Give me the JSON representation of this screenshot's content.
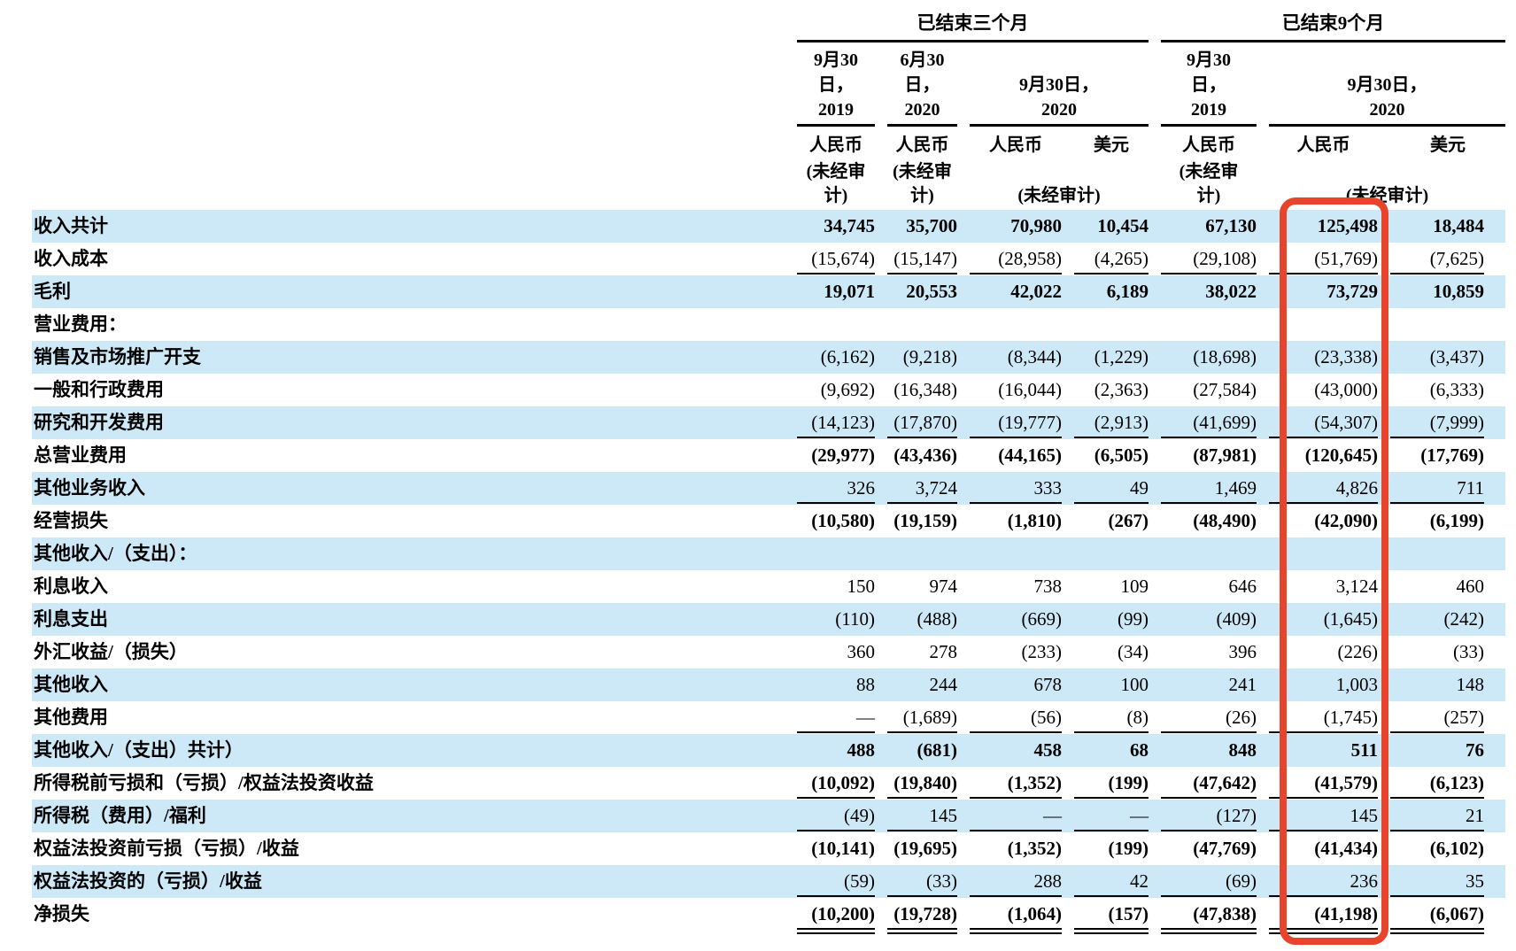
{
  "colors": {
    "row_shade": "#cde9f8",
    "highlight_red": "#e8432b"
  },
  "table": {
    "groups": [
      {
        "label": "已结束三个月"
      },
      {
        "label": "已结束9个月"
      }
    ],
    "dates": [
      [
        "9月30",
        "日，",
        "2019"
      ],
      [
        "6月30",
        "日，",
        "2020"
      ],
      [
        "9月30日，",
        "2020"
      ],
      [
        "9月30",
        "日，",
        "2019"
      ],
      [
        "9月30日，",
        "2020"
      ]
    ],
    "currencies": [
      "人民币",
      "人民币",
      "人民币",
      "美元",
      "人民币",
      "人民币",
      "美元"
    ],
    "audit_note": {
      "wrapped": [
        "(未经审",
        "计)"
      ],
      "single": "(未经审计)"
    },
    "highlight": {
      "description": "red box around 已结束9个月 9月30日，2020 人民币 column",
      "column_index": 5
    },
    "rows": [
      {
        "label": "收入共计",
        "values": [
          "34,745",
          "35,700",
          "70,980",
          "10,454",
          "67,130",
          "125,498",
          "18,484"
        ],
        "bold": true,
        "shaded": true
      },
      {
        "label": "收入成本",
        "values": [
          "(15,674)",
          "(15,147)",
          "(28,958)",
          "(4,265)",
          "(29,108)",
          "(51,769)",
          "(7,625)"
        ],
        "underline": true
      },
      {
        "label": "毛利",
        "values": [
          "19,071",
          "20,553",
          "42,022",
          "6,189",
          "38,022",
          "73,729",
          "10,859"
        ],
        "bold": true,
        "shaded": true
      },
      {
        "label": "营业费用：",
        "values": [
          "",
          "",
          "",
          "",
          "",
          "",
          ""
        ]
      },
      {
        "label": "销售及市场推广开支",
        "values": [
          "(6,162)",
          "(9,218)",
          "(8,344)",
          "(1,229)",
          "(18,698)",
          "(23,338)",
          "(3,437)"
        ],
        "shaded": true
      },
      {
        "label": "一般和行政费用",
        "values": [
          "(9,692)",
          "(16,348)",
          "(16,044)",
          "(2,363)",
          "(27,584)",
          "(43,000)",
          "(6,333)"
        ]
      },
      {
        "label": "研究和开发费用",
        "values": [
          "(14,123)",
          "(17,870)",
          "(19,777)",
          "(2,913)",
          "(41,699)",
          "(54,307)",
          "(7,999)"
        ],
        "shaded": true,
        "underline": true
      },
      {
        "label": "总营业费用",
        "values": [
          "(29,977)",
          "(43,436)",
          "(44,165)",
          "(6,505)",
          "(87,981)",
          "(120,645)",
          "(17,769)"
        ],
        "bold": true
      },
      {
        "label": "其他业务收入",
        "values": [
          "326",
          "3,724",
          "333",
          "49",
          "1,469",
          "4,826",
          "711"
        ],
        "shaded": true,
        "underline": true
      },
      {
        "label": "经营损失",
        "values": [
          "(10,580)",
          "(19,159)",
          "(1,810)",
          "(267)",
          "(48,490)",
          "(42,090)",
          "(6,199)"
        ],
        "bold": true
      },
      {
        "label": "其他收入/（支出）：",
        "values": [
          "",
          "",
          "",
          "",
          "",
          "",
          ""
        ],
        "shaded": true
      },
      {
        "label": "利息收入",
        "values": [
          "150",
          "974",
          "738",
          "109",
          "646",
          "3,124",
          "460"
        ]
      },
      {
        "label": "利息支出",
        "values": [
          "(110)",
          "(488)",
          "(669)",
          "(99)",
          "(409)",
          "(1,645)",
          "(242)"
        ],
        "shaded": true
      },
      {
        "label": "外汇收益/（损失）",
        "values": [
          "360",
          "278",
          "(233)",
          "(34)",
          "396",
          "(226)",
          "(33)"
        ]
      },
      {
        "label": "其他收入",
        "values": [
          "88",
          "244",
          "678",
          "100",
          "241",
          "1,003",
          "148"
        ],
        "shaded": true
      },
      {
        "label": "其他费用",
        "values": [
          "—",
          "(1,689)",
          "(56)",
          "(8)",
          "(26)",
          "(1,745)",
          "(257)"
        ],
        "underline": true
      },
      {
        "label": "其他收入/（支出）共计）",
        "values": [
          "488",
          "(681)",
          "458",
          "68",
          "848",
          "511",
          "76"
        ],
        "bold": true,
        "shaded": true
      },
      {
        "label": "所得税前亏损和（亏损）/权益法投资收益",
        "values": [
          "(10,092)",
          "(19,840)",
          "(1,352)",
          "(199)",
          "(47,642)",
          "(41,579)",
          "(6,123)"
        ],
        "bold": true,
        "underline": true
      },
      {
        "label": "所得税（费用）/福利",
        "values": [
          "(49)",
          "145",
          "—",
          "—",
          "(127)",
          "145",
          "21"
        ],
        "shaded": true,
        "underline": true
      },
      {
        "label": "权益法投资前亏损（亏损）/收益",
        "values": [
          "(10,141)",
          "(19,695)",
          "(1,352)",
          "(199)",
          "(47,769)",
          "(41,434)",
          "(6,102)"
        ],
        "bold": true
      },
      {
        "label": "权益法投资的（亏损）/收益",
        "values": [
          "(59)",
          "(33)",
          "288",
          "42",
          "(69)",
          "236",
          "35"
        ],
        "shaded": true,
        "underline": true
      },
      {
        "label": "净损失",
        "values": [
          "(10,200)",
          "(19,728)",
          "(1,064)",
          "(157)",
          "(47,838)",
          "(41,198)",
          "(6,067)"
        ],
        "bold": true,
        "double_underline": true
      }
    ]
  }
}
